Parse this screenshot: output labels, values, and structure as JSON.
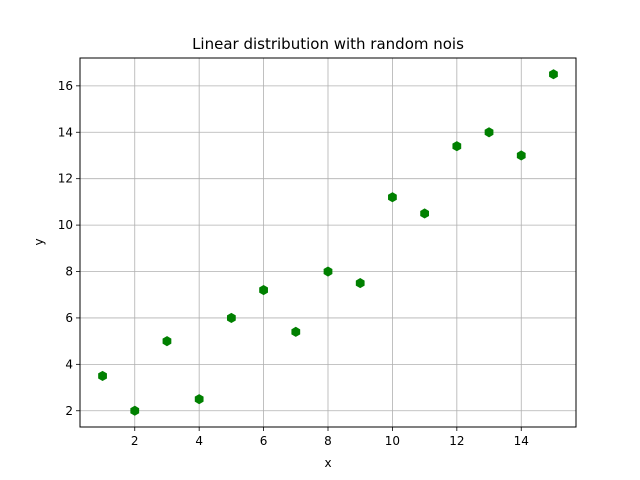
{
  "chart_data": {
    "type": "scatter",
    "title": "Linear distribution with random nois",
    "xlabel": "x",
    "ylabel": "y",
    "xlim": [
      0.3,
      15.7
    ],
    "ylim": [
      1.3,
      17.2
    ],
    "xticks": [
      2,
      4,
      6,
      8,
      10,
      12,
      14
    ],
    "yticks": [
      2,
      4,
      6,
      8,
      10,
      12,
      14,
      16
    ],
    "grid": true,
    "marker": "hexagon",
    "color": "#008000",
    "points": [
      {
        "x": 1,
        "y": 3.5
      },
      {
        "x": 2,
        "y": 2.0
      },
      {
        "x": 3,
        "y": 5.0
      },
      {
        "x": 4,
        "y": 2.5
      },
      {
        "x": 5,
        "y": 6.0
      },
      {
        "x": 6,
        "y": 7.2
      },
      {
        "x": 7,
        "y": 5.4
      },
      {
        "x": 8,
        "y": 8.0
      },
      {
        "x": 9,
        "y": 7.5
      },
      {
        "x": 10,
        "y": 11.2
      },
      {
        "x": 11,
        "y": 10.5
      },
      {
        "x": 12,
        "y": 13.4
      },
      {
        "x": 13,
        "y": 14.0
      },
      {
        "x": 14,
        "y": 13.0
      },
      {
        "x": 15,
        "y": 16.5
      }
    ]
  }
}
